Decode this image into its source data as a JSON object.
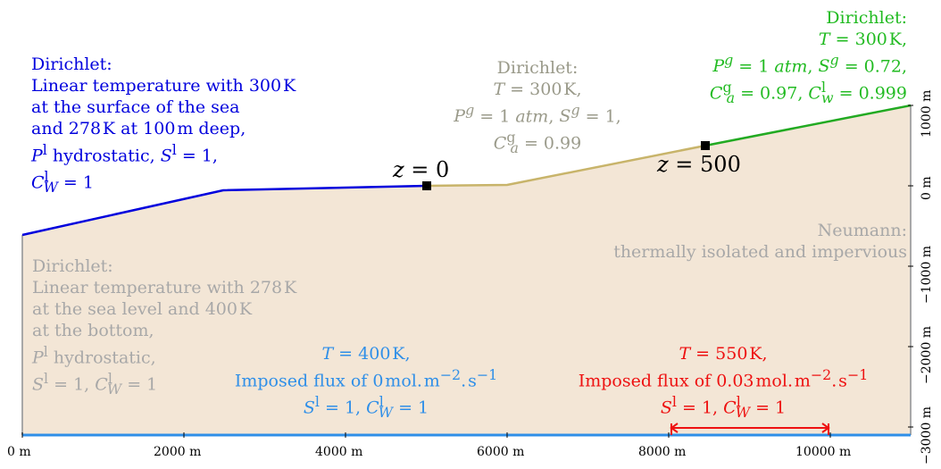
{
  "colors": {
    "fill": "#f3e6d6",
    "blue": "#0000dd",
    "tan": "#c8b46a",
    "green": "#22aa22",
    "gray": "#a8a8a8",
    "light_blue": "#2f8fe8",
    "red": "#ee1111"
  },
  "labels": {
    "sea": [
      "Dirichlet:",
      "Linear temperature with 300 K",
      "at the surface of the sea",
      "and 278 K at 100 m deep,",
      "P^l hydrostatic, S^l = 1,",
      "C^l_W = 1"
    ],
    "middle": [
      "Dirichlet:",
      "T = 300 K,",
      "P^g = 1 atm, S^g = 1,",
      "C^g_a = 0.99"
    ],
    "right_top": [
      "Dirichlet:",
      "T = 300 K,",
      "P^g = 1 atm, S^g = 0.72,",
      "C^g_a = 0.97, C^l_w = 0.999"
    ],
    "left_side": [
      "Dirichlet:",
      "Linear temperature with 278 K",
      "at the sea level and 400 K",
      "at the bottom,",
      "P^l hydrostatic,",
      "S^l = 1, C^l_W = 1"
    ],
    "right_side": [
      "Neumann:",
      "thermally isolated and impervious"
    ],
    "bottom_left": [
      "T = 400 K,",
      "Imposed flux of 0 mol. m^-2. s^-1",
      "S^l = 1, C^l_W = 1"
    ],
    "bottom_right": [
      "T = 550 K,",
      "Imposed flux of 0.03 mol. m^-2. s^-1",
      "S^l = 1, C^l_W = 1"
    ],
    "z0": "z = 0",
    "z500": "z = 500"
  },
  "x_ticks": [
    "0 m",
    "2000 m",
    "4000 m",
    "6000 m",
    "8000 m",
    "10000 m"
  ],
  "y_ticks": [
    "1000 m",
    "0 m",
    "−1000 m",
    "−2000 m",
    "−3000 m"
  ]
}
